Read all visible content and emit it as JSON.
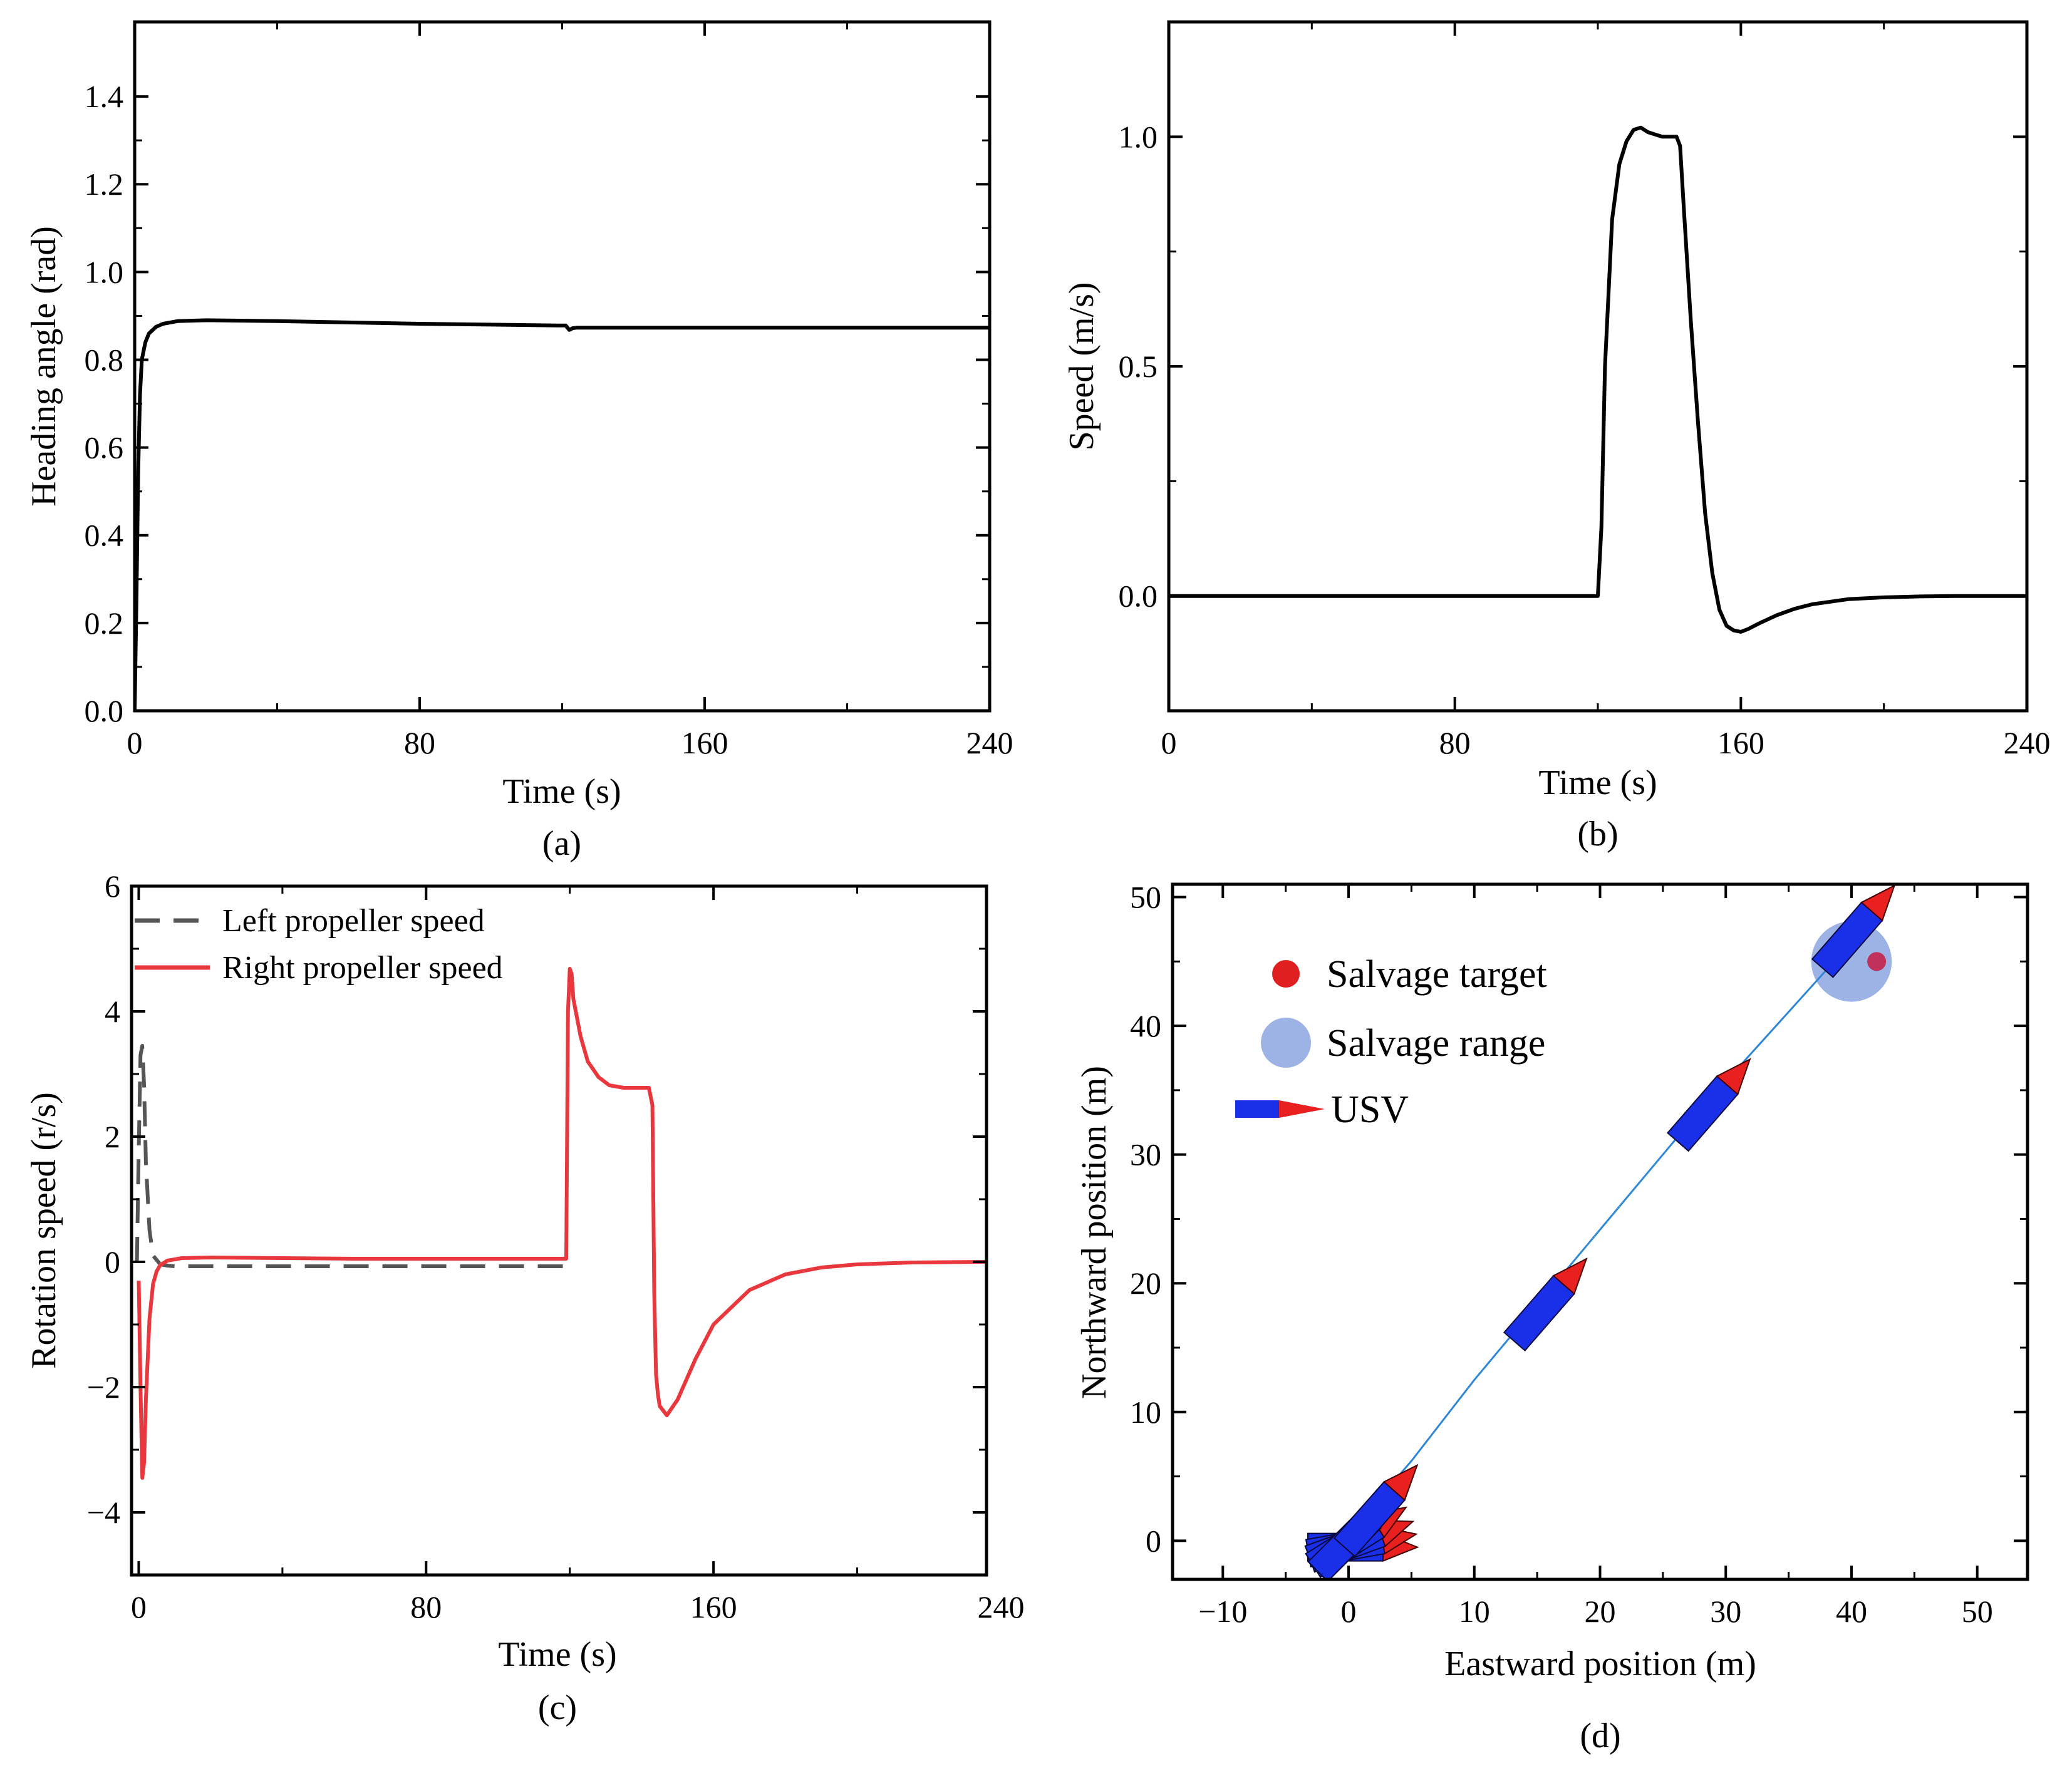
{
  "chart_data": [
    {
      "id": "a",
      "type": "line",
      "caption": "(a)",
      "xlabel": "Time (s)",
      "ylabel": "Heading angle (rad)",
      "xlim": [
        0,
        240
      ],
      "ylim": [
        0,
        1.57
      ],
      "xticks": [
        0,
        80,
        160,
        240
      ],
      "xtick_labels": [
        "0",
        "80",
        "160",
        "240"
      ],
      "yticks": [
        0,
        0.2,
        0.4,
        0.6,
        0.8,
        1.0,
        1.2,
        1.4
      ],
      "ytick_labels": [
        "0.0",
        "0.2",
        "0.4",
        "0.6",
        "0.8",
        "1.0",
        "1.2",
        "1.4"
      ],
      "series": [
        {
          "name": "Heading angle",
          "color": "#000000",
          "style": "solid",
          "x": [
            0,
            0.5,
            1,
            1.5,
            2,
            3,
            4,
            6,
            8,
            12,
            20,
            40,
            60,
            80,
            100,
            120,
            121,
            122,
            123,
            124,
            125,
            130,
            160,
            200,
            240
          ],
          "y": [
            0,
            0.25,
            0.55,
            0.72,
            0.8,
            0.84,
            0.86,
            0.875,
            0.882,
            0.888,
            0.89,
            0.888,
            0.885,
            0.882,
            0.88,
            0.878,
            0.878,
            0.868,
            0.872,
            0.873,
            0.873,
            0.873,
            0.873,
            0.873,
            0.873
          ]
        }
      ]
    },
    {
      "id": "b",
      "type": "line",
      "caption": "(b)",
      "xlabel": "Time (s)",
      "ylabel": "Speed (m/s)",
      "xlim": [
        0,
        240
      ],
      "ylim": [
        -0.25,
        1.25
      ],
      "xticks": [
        0,
        80,
        160,
        240
      ],
      "xtick_labels": [
        "0",
        "80",
        "160",
        "240"
      ],
      "yticks": [
        0.0,
        0.5,
        1.0
      ],
      "ytick_labels": [
        "0.0",
        "0.5",
        "1.0"
      ],
      "series": [
        {
          "name": "Speed",
          "color": "#000000",
          "style": "solid",
          "x": [
            0,
            110,
            120,
            121,
            122,
            124,
            126,
            128,
            130,
            132,
            134,
            136,
            138,
            140,
            142,
            143,
            144,
            146,
            148,
            150,
            152,
            154,
            156,
            158,
            160,
            162,
            165,
            170,
            175,
            180,
            190,
            200,
            210,
            220,
            240
          ],
          "y": [
            0,
            0,
            0,
            0.15,
            0.5,
            0.82,
            0.94,
            0.99,
            1.015,
            1.02,
            1.01,
            1.005,
            1.0,
            1.0,
            1.0,
            0.98,
            0.85,
            0.6,
            0.38,
            0.18,
            0.05,
            -0.03,
            -0.065,
            -0.075,
            -0.078,
            -0.072,
            -0.06,
            -0.042,
            -0.028,
            -0.018,
            -0.007,
            -0.003,
            -0.001,
            0,
            0
          ]
        }
      ]
    },
    {
      "id": "c",
      "type": "line",
      "caption": "(c)",
      "xlabel": "Time (s)",
      "ylabel": "Rotation speed (r/s)",
      "xlim": [
        -2,
        236
      ],
      "ylim": [
        -5,
        6
      ],
      "xticks": [
        0,
        80,
        160,
        240
      ],
      "xtick_labels": [
        "0",
        "80",
        "160",
        "240"
      ],
      "yticks": [
        -4,
        -2,
        0,
        2,
        4,
        6
      ],
      "ytick_labels": [
        "−4",
        "−2",
        "0",
        "2",
        "4",
        "6"
      ],
      "legend": [
        "Left propeller speed",
        "Right propeller speed"
      ],
      "series": [
        {
          "name": "Left propeller speed",
          "color": "#555555",
          "style": "dashed",
          "x": [
            -0.5,
            0,
            0.5,
            1,
            1.5,
            2,
            3,
            4,
            6,
            8,
            10,
            15,
            40,
            80,
            118,
            119
          ],
          "y": [
            0,
            1.8,
            3.3,
            3.45,
            2.8,
            1.6,
            0.5,
            0.1,
            -0.04,
            -0.06,
            -0.07,
            -0.07,
            -0.07,
            -0.07,
            -0.07,
            -0.07
          ]
        },
        {
          "name": "Right propeller speed",
          "color": "#e8383d",
          "style": "solid",
          "x": [
            0,
            0.5,
            1,
            1.5,
            2,
            3,
            4,
            5,
            6,
            8,
            12,
            20,
            40,
            60,
            80,
            100,
            118,
            119,
            119.5,
            120,
            120.5,
            121,
            123,
            125,
            128,
            131,
            135,
            140,
            142,
            143,
            143.5,
            144,
            144.5,
            145,
            147,
            150,
            155,
            160,
            170,
            180,
            190,
            200,
            215,
            236
          ],
          "y": [
            -0.3,
            -2,
            -3.45,
            -3.2,
            -2.2,
            -0.9,
            -0.35,
            -0.15,
            -0.05,
            0.02,
            0.06,
            0.07,
            0.06,
            0.05,
            0.05,
            0.05,
            0.05,
            0.05,
            4.0,
            4.68,
            4.6,
            4.2,
            3.6,
            3.2,
            2.95,
            2.82,
            2.78,
            2.78,
            2.78,
            2.5,
            -0.5,
            -1.8,
            -2.1,
            -2.3,
            -2.45,
            -2.2,
            -1.55,
            -1.0,
            -0.45,
            -0.2,
            -0.09,
            -0.04,
            -0.01,
            0
          ]
        }
      ]
    },
    {
      "id": "d",
      "type": "scatter",
      "caption": "(d)",
      "xlabel": "Eastward position (m)",
      "ylabel": "Northward position (m)",
      "xlim": [
        -14,
        54
      ],
      "ylim": [
        -3,
        51
      ],
      "xticks": [
        -10,
        0,
        10,
        20,
        30,
        40,
        50
      ],
      "xtick_labels": [
        "−10",
        "0",
        "10",
        "20",
        "30",
        "40",
        "50"
      ],
      "yticks": [
        0,
        10,
        20,
        30,
        40,
        50
      ],
      "ytick_labels": [
        "0",
        "10",
        "20",
        "30",
        "40",
        "50"
      ],
      "legend": [
        "Salvage target",
        "Salvage range",
        "USV"
      ],
      "trajectory": {
        "color": "#2f87d8",
        "x": [
          -1,
          0,
          2,
          5,
          10,
          16,
          22,
          28,
          34,
          40,
          43
        ],
        "y": [
          -1,
          0.5,
          2.8,
          6.2,
          12.5,
          19.5,
          26.5,
          33.5,
          40,
          46.5,
          50
        ]
      },
      "salvage_target": {
        "x": 42,
        "y": 45,
        "color": "#e02020"
      },
      "salvage_range": {
        "x": 40,
        "y": 45,
        "radius": 3.2,
        "color": "#9db3e6"
      },
      "usv_poses": [
        {
          "x": -0.5,
          "y": -0.5,
          "heading_deg": 0
        },
        {
          "x": -0.5,
          "y": -0.5,
          "heading_deg": 10
        },
        {
          "x": -0.5,
          "y": -0.5,
          "heading_deg": 20
        },
        {
          "x": -0.5,
          "y": -0.5,
          "heading_deg": 32
        },
        {
          "x": -0.5,
          "y": -0.5,
          "heading_deg": 45
        },
        {
          "x": 1.5,
          "y": 1.5,
          "heading_deg": 48.5
        },
        {
          "x": 15,
          "y": 17.5,
          "heading_deg": 49
        },
        {
          "x": 28,
          "y": 33,
          "heading_deg": 49
        },
        {
          "x": 39.5,
          "y": 46.5,
          "heading_deg": 49
        }
      ],
      "usv_colors": {
        "hull": "#1a2fe8",
        "bow": "#e82020"
      }
    }
  ]
}
